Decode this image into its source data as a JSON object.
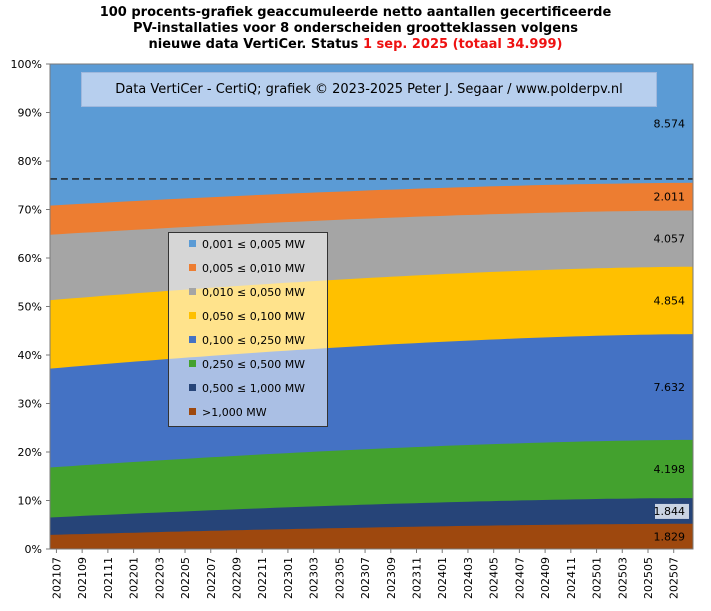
{
  "title": {
    "line1": "100 procents-grafiek geaccumuleerde netto aantallen gecertificeerde",
    "line2": "PV-installaties voor 8 onderscheiden grootteklassen volgens",
    "line3_prefix": "nieuwe data VertiCer. Status",
    "line3_date": "1 sep. 2025",
    "line3_total": "(totaal 34.999)"
  },
  "credit": "Data VertiCer - CertiQ; grafiek © 2023-2025  Peter J. Segaar / www.polderpv.nl",
  "colors": {
    "title_highlight": "#ee1111"
  },
  "chart_data": {
    "type": "area",
    "stacked": "percent",
    "x_ticks": [
      "202107",
      "202109",
      "202111",
      "202201",
      "202203",
      "202205",
      "202207",
      "202209",
      "202211",
      "202301",
      "202303",
      "202305",
      "202307",
      "202309",
      "202311",
      "202401",
      "202403",
      "202405",
      "202407",
      "202409",
      "202411",
      "202501",
      "202503",
      "202505",
      "202507"
    ],
    "x_range": [
      "202107",
      "202508"
    ],
    "y_ticks": [
      "0%",
      "10%",
      "20%",
      "30%",
      "40%",
      "50%",
      "60%",
      "70%",
      "80%",
      "90%",
      "100%"
    ],
    "ylim": [
      0,
      100
    ],
    "reference_line": 76.3,
    "series": [
      {
        "name": ">1,000 MW",
        "color": "#9e480e",
        "cum_start": 2.9,
        "cum_end": 5.2,
        "end_label": "1.829"
      },
      {
        "name": "0,500 ≤  1,000 MW",
        "color": "#264478",
        "cum_start": 6.5,
        "cum_end": 10.5,
        "end_label": "1.844"
      },
      {
        "name": "0,250 ≤  0,500 MW",
        "color": "#43a12e",
        "cum_start": 16.8,
        "cum_end": 22.5,
        "end_label": "4.198"
      },
      {
        "name": "0,100 ≤  0,250 MW",
        "color": "#4472c4",
        "cum_start": 37.2,
        "cum_end": 44.3,
        "end_label": "7.632"
      },
      {
        "name": "0,050 ≤  0,100 MW",
        "color": "#ffc000",
        "cum_start": 51.3,
        "cum_end": 58.2,
        "end_label": "4.854"
      },
      {
        "name": "0,010 ≤  0,050 MW",
        "color": "#a5a5a5",
        "cum_start": 64.8,
        "cum_end": 69.8,
        "end_label": "4.057"
      },
      {
        "name": "0,005 ≤  0,010 MW",
        "color": "#ed7d31",
        "cum_start": 70.8,
        "cum_end": 75.5,
        "end_label": "2.011"
      },
      {
        "name": "0,001 ≤  0,005 MW",
        "color": "#5b9bd5",
        "cum_start": 100,
        "cum_end": 100,
        "end_label": "8.574"
      }
    ],
    "legend_order": [
      "0,001 ≤  0,005 MW",
      "0,005 ≤  0,010 MW",
      "0,010 ≤  0,050 MW",
      "0,050 ≤  0,100 MW",
      "0,100 ≤  0,250 MW",
      "0,250 ≤  0,500 MW",
      "0,500 ≤  1,000 MW",
      ">1,000 MW"
    ],
    "legend_placement": "center-left"
  }
}
